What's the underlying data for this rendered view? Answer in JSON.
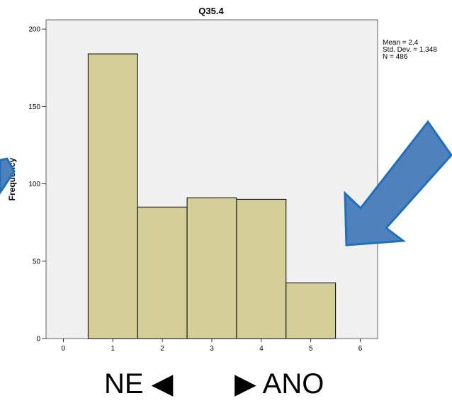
{
  "chart_data": {
    "type": "bar",
    "title": "Q35.4",
    "xlabel": "",
    "ylabel": "Frequency",
    "x_ticks": [
      0,
      1,
      2,
      3,
      4,
      5,
      6
    ],
    "y_ticks": [
      0,
      50,
      100,
      150,
      200
    ],
    "xlim": [
      -0.35,
      6.35
    ],
    "ylim": [
      0,
      206
    ],
    "bins": [
      {
        "center": 1,
        "value": 184
      },
      {
        "center": 2,
        "value": 85
      },
      {
        "center": 3,
        "value": 91
      },
      {
        "center": 4,
        "value": 90
      },
      {
        "center": 5,
        "value": 36
      }
    ],
    "bar_color": "#d4cf98",
    "plot_background": "#f0f0f0",
    "stats": {
      "mean": "Mean = 2,4",
      "std_dev": "Std. Dev. = 1,348",
      "n": "N = 486"
    }
  },
  "footer": {
    "left_text": "NE ◀",
    "right_text": "▶ ANO"
  },
  "annotations": {
    "arrow_color": "#4f81bd",
    "arrow_border": "#1f6fbf"
  }
}
